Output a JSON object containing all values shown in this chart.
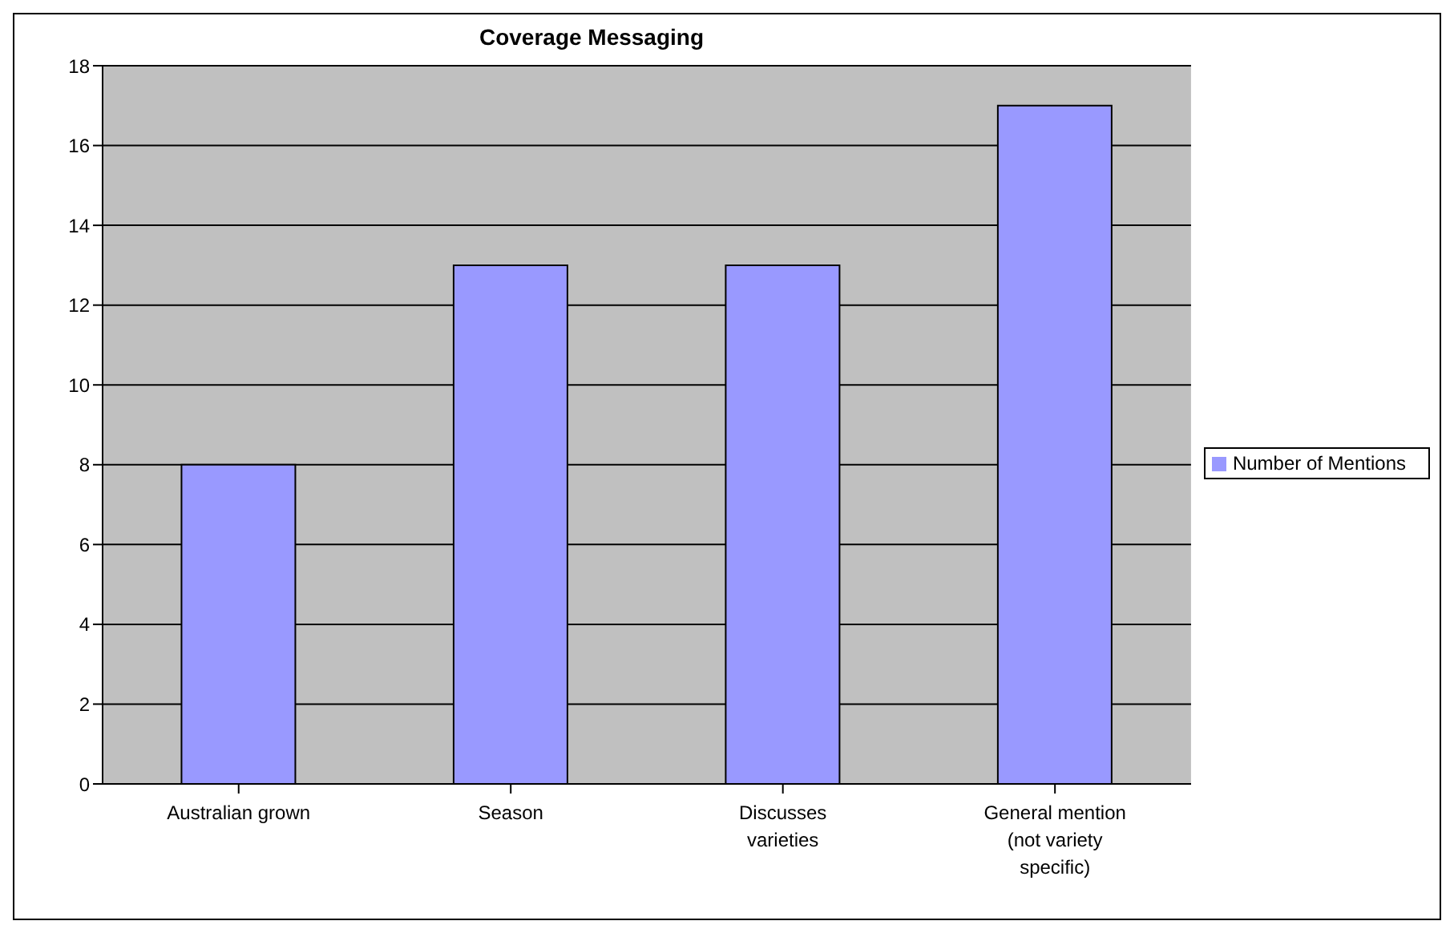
{
  "chart_data": {
    "type": "bar",
    "title": "Coverage Messaging",
    "categories": [
      "Australian grown",
      "Season",
      "Discusses varieties",
      "General mention (not variety specific)"
    ],
    "series": [
      {
        "name": "Number of Mentions",
        "color": "#9999ff",
        "values": [
          8,
          13,
          13,
          17
        ]
      }
    ],
    "ylim": [
      0,
      18
    ],
    "yticks": [
      0,
      2,
      4,
      6,
      8,
      10,
      12,
      14,
      16,
      18
    ],
    "grid": "y",
    "legend": "right"
  }
}
